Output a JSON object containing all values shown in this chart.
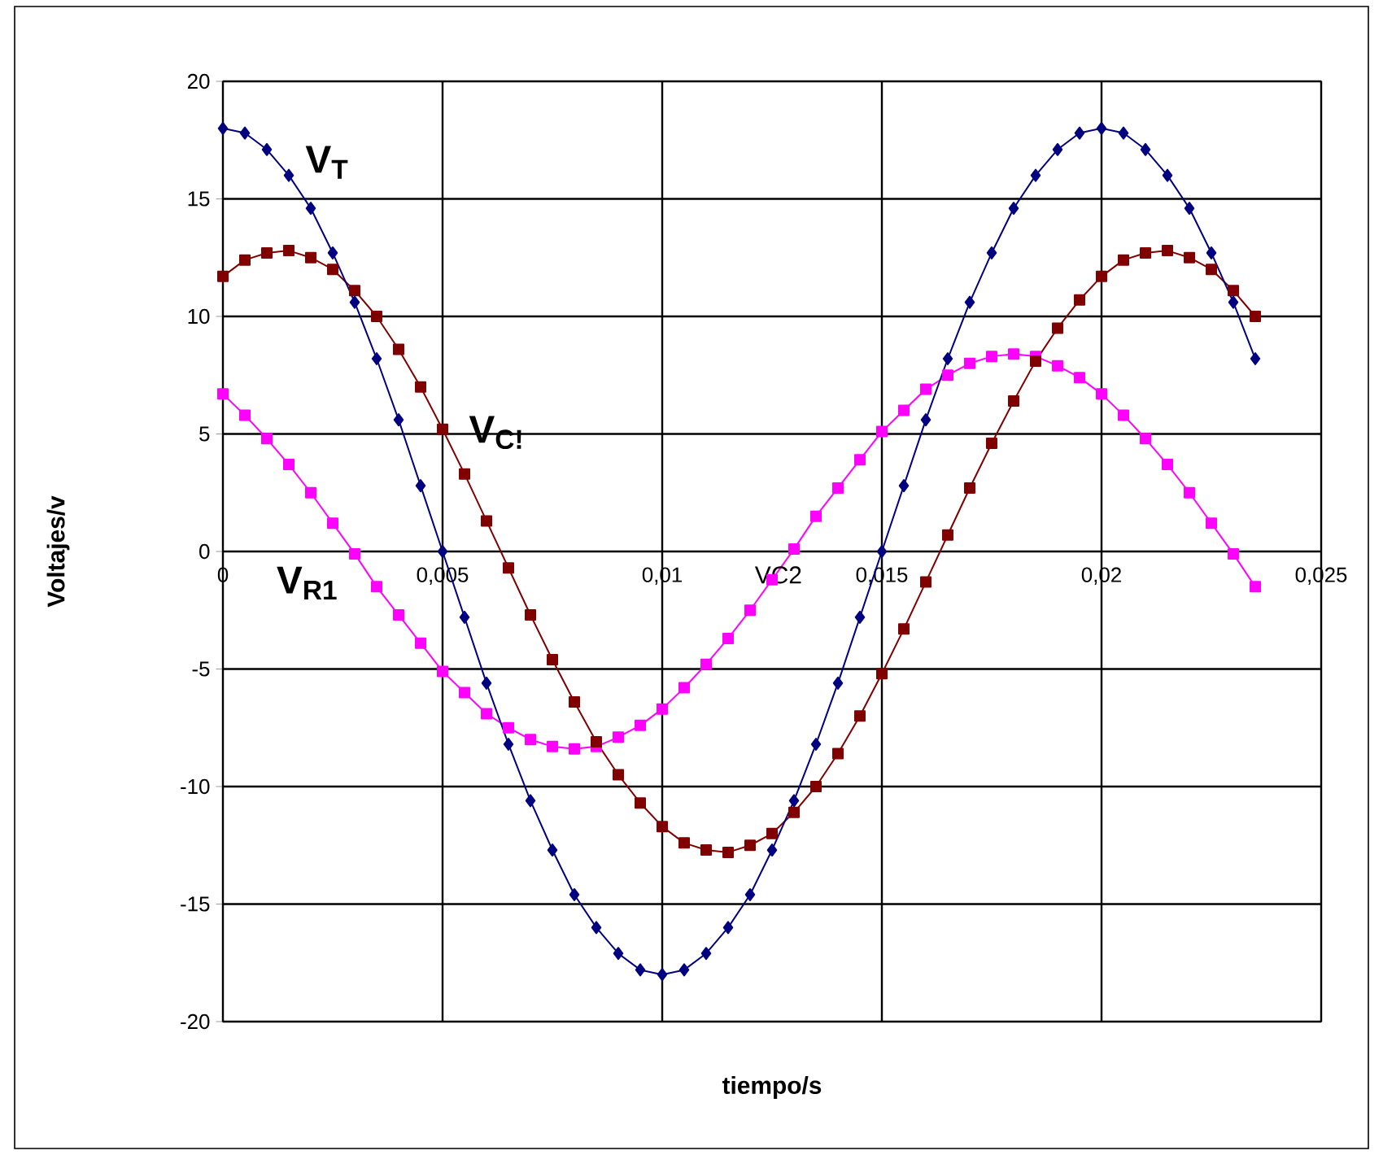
{
  "chart_data": {
    "type": "line",
    "xlabel": "tiempo/s",
    "ylabel": "Voltajes/v",
    "x": [
      0,
      0.0005,
      0.001,
      0.0015,
      0.002,
      0.0025,
      0.003,
      0.0035,
      0.004,
      0.0045,
      0.005,
      0.0055,
      0.006,
      0.0065,
      0.007,
      0.0075,
      0.008,
      0.0085,
      0.009,
      0.0095,
      0.01,
      0.0105,
      0.011,
      0.0115,
      0.012,
      0.0125,
      0.013,
      0.0135,
      0.014,
      0.0145,
      0.015,
      0.0155,
      0.016,
      0.0165,
      0.017,
      0.0175,
      0.018,
      0.0185,
      0.019,
      0.0195,
      0.02,
      0.0205,
      0.021,
      0.0215,
      0.022,
      0.0225,
      0.023,
      0.0235
    ],
    "series": [
      {
        "name": "V$_{T}$",
        "color": "#000080",
        "marker": "diamond",
        "values": [
          18,
          17.8,
          17.1,
          16.0,
          14.6,
          12.7,
          10.6,
          8.2,
          5.6,
          2.8,
          0,
          -2.8,
          -5.6,
          -8.2,
          -10.6,
          -12.7,
          -14.6,
          -16.0,
          -17.1,
          -17.8,
          -18,
          -17.8,
          -17.1,
          -16.0,
          -14.6,
          -12.7,
          -10.6,
          -8.2,
          -5.6,
          -2.8,
          0,
          2.8,
          5.6,
          8.2,
          10.6,
          12.7,
          14.6,
          16.0,
          17.1,
          17.8,
          18,
          17.8,
          17.1,
          16.0,
          14.6,
          12.7,
          10.6,
          8.2
        ]
      },
      {
        "name": "V$_{C!}$",
        "color": "#800000",
        "marker": "square",
        "values": [
          11.7,
          12.4,
          12.7,
          12.8,
          12.5,
          12.0,
          11.1,
          10.0,
          8.6,
          7.0,
          5.2,
          3.3,
          1.3,
          -0.7,
          -2.7,
          -4.6,
          -6.4,
          -8.1,
          -9.5,
          -10.7,
          -11.7,
          -12.4,
          -12.7,
          -12.8,
          -12.5,
          -12.0,
          -11.1,
          -10.0,
          -8.6,
          -7.0,
          -5.2,
          -3.3,
          -1.3,
          0.7,
          2.7,
          4.6,
          6.4,
          8.1,
          9.5,
          10.7,
          11.7,
          12.4,
          12.7,
          12.8,
          12.5,
          12.0,
          11.1,
          10.0
        ]
      },
      {
        "name": "V$_{R1}$",
        "color": "#ff00ff",
        "marker": "square",
        "values": [
          6.7,
          5.8,
          4.8,
          3.7,
          2.5,
          1.2,
          -0.1,
          -1.5,
          -2.7,
          -3.9,
          -5.1,
          -6.0,
          -6.9,
          -7.5,
          -8.0,
          -8.3,
          -8.4,
          -8.3,
          -7.9,
          -7.4,
          -6.7,
          -5.8,
          -4.8,
          -3.7,
          -2.5,
          -1.2,
          0.1,
          1.5,
          2.7,
          3.9,
          5.1,
          6.0,
          6.9,
          7.5,
          8.0,
          8.3,
          8.4,
          8.3,
          7.9,
          7.4,
          6.7,
          5.8,
          4.8,
          3.7,
          2.5,
          1.2,
          -0.1,
          -1.5
        ]
      }
    ],
    "annotations": [
      "VC2"
    ],
    "xlim": [
      0,
      0.025
    ],
    "ylim": [
      -20,
      20
    ],
    "xticks": [
      0,
      {
        "value": 0.005,
        "label": "0,005"
      },
      {
        "value": 0.01,
        "label": "0,01"
      },
      {
        "value": 0.015,
        "label": "0,015"
      },
      {
        "value": 0.02,
        "label": "0,02"
      },
      {
        "value": 0.025,
        "label": "0,025"
      }
    ],
    "yticks": [
      -20,
      -15,
      -10,
      -5,
      0,
      5,
      10,
      15,
      20
    ],
    "grid": true,
    "line_style": "solid"
  }
}
